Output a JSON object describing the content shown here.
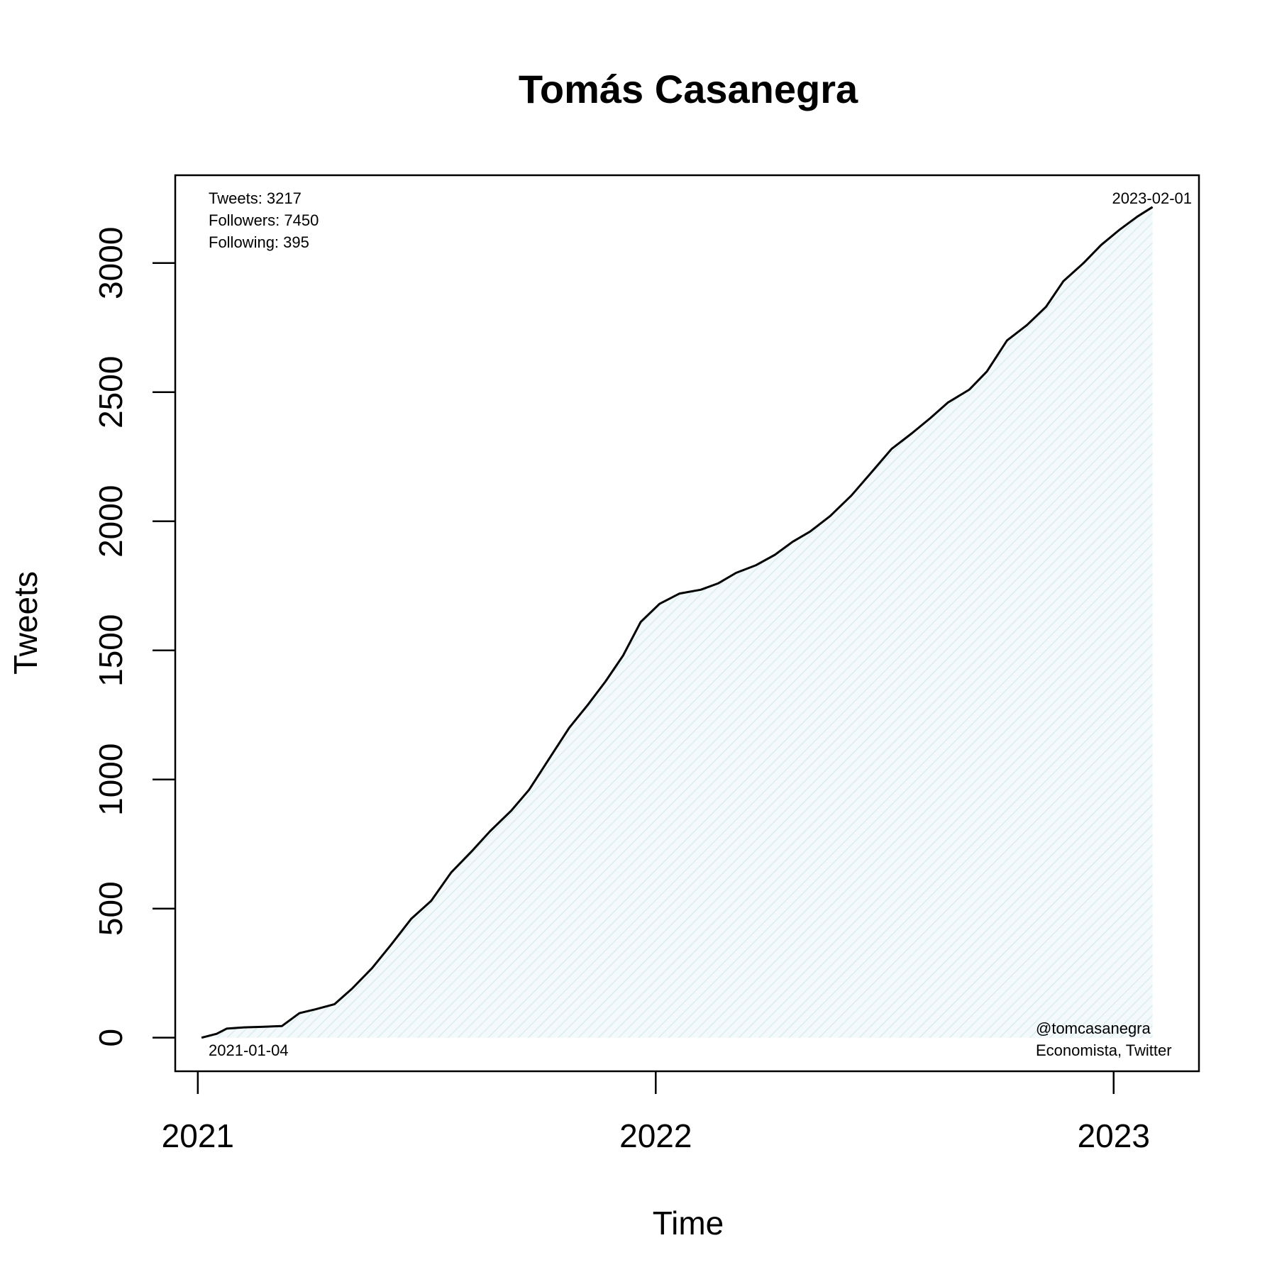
{
  "chart_data": {
    "type": "area",
    "title": "Tomás Casanegra",
    "xlabel": "Time",
    "ylabel": "Tweets",
    "x_ticks": [
      "2021",
      "2022",
      "2023"
    ],
    "y_ticks": [
      "0",
      "500",
      "1000",
      "1500",
      "2000",
      "2500",
      "3000"
    ],
    "xlim": [
      "2020-12-14",
      "2023-03-10"
    ],
    "ylim": [
      -130,
      3340
    ],
    "grid": false,
    "start_label": "2021-01-04",
    "end_label": "2023-02-01",
    "stats": [
      "Tweets: 3217",
      "Followers: 7450",
      "Following: 395"
    ],
    "credits": [
      "@tomcasanegra",
      "Economista, Twitter"
    ],
    "line_color": "#000000",
    "fill_color": "#e8f3f6",
    "series": [
      {
        "x": [
          "2021-01-04",
          "2021-01-16",
          "2021-01-24",
          "2021-02-07",
          "2021-02-21",
          "2021-03-09",
          "2021-03-23",
          "2021-04-05",
          "2021-04-20",
          "2021-05-04",
          "2021-05-20",
          "2021-06-04",
          "2021-06-20",
          "2021-07-06",
          "2021-07-22",
          "2021-08-07",
          "2021-08-22",
          "2021-09-08",
          "2021-09-22",
          "2021-10-08",
          "2021-10-24",
          "2021-11-08",
          "2021-11-22",
          "2021-12-06",
          "2021-12-20",
          "2022-01-04",
          "2022-01-20",
          "2022-02-06",
          "2022-02-20",
          "2022-03-06",
          "2022-03-22",
          "2022-04-06",
          "2022-04-20",
          "2022-05-04",
          "2022-05-20",
          "2022-06-06",
          "2022-06-22",
          "2022-07-08",
          "2022-07-24",
          "2022-08-08",
          "2022-08-22",
          "2022-09-08",
          "2022-09-22",
          "2022-10-08",
          "2022-10-24",
          "2022-11-08",
          "2022-11-22",
          "2022-12-08",
          "2022-12-22",
          "2023-01-06",
          "2023-01-20",
          "2023-02-01"
        ],
        "y": [
          0,
          15,
          35,
          40,
          42,
          45,
          95,
          110,
          130,
          190,
          270,
          360,
          460,
          530,
          640,
          720,
          800,
          880,
          960,
          1080,
          1200,
          1290,
          1380,
          1480,
          1610,
          1680,
          1720,
          1735,
          1760,
          1800,
          1830,
          1870,
          1920,
          1960,
          2020,
          2100,
          2190,
          2280,
          2340,
          2400,
          2460,
          2510,
          2580,
          2700,
          2760,
          2830,
          2930,
          3000,
          3070,
          3130,
          3180,
          3217
        ]
      }
    ]
  }
}
